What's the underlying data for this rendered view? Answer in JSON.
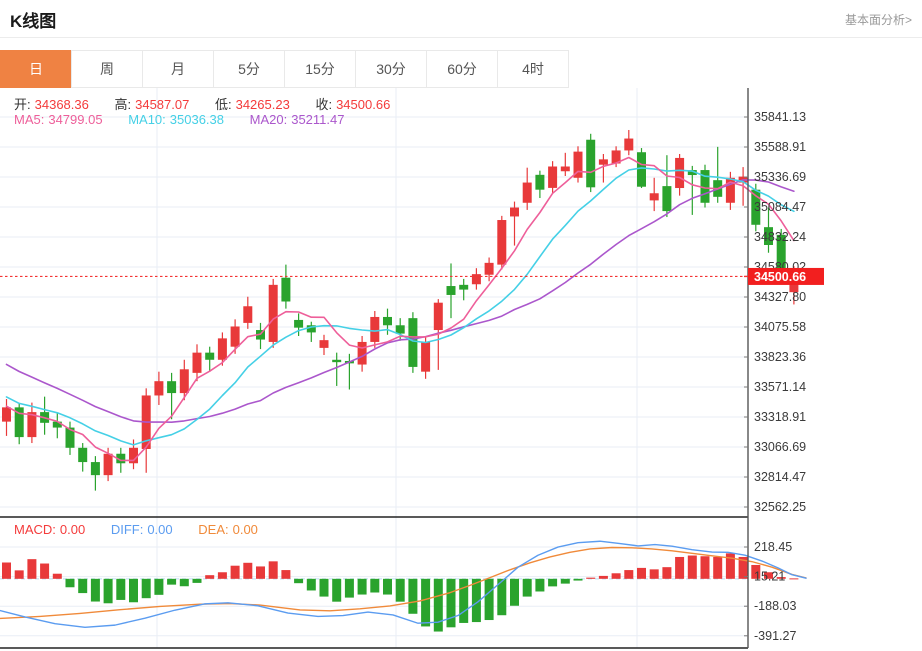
{
  "page": {
    "title": "K线图",
    "link_label": "基本面分析>"
  },
  "tabs": {
    "items": [
      "日",
      "周",
      "月",
      "5分",
      "15分",
      "30分",
      "60分",
      "4时"
    ],
    "active_index": 0
  },
  "ohlc": {
    "open_label": "开:",
    "open": "34368.36",
    "high_label": "高:",
    "high": "34587.07",
    "low_label": "低:",
    "low": "34265.23",
    "close_label": "收:",
    "close": "34500.66"
  },
  "ma_header": {
    "ma5_label": "MA5:",
    "ma5": "34799.05",
    "ma10_label": "MA10:",
    "ma10": "35036.38",
    "ma20_label": "MA20:",
    "ma20": "35211.47"
  },
  "macd_header": {
    "macd_label": "MACD:",
    "macd": "0.00",
    "diff_label": "DIFF:",
    "diff": "0.00",
    "dea_label": "DEA:",
    "dea": "0.00"
  },
  "colors": {
    "up": "#e8393a",
    "down": "#2aa32d",
    "ma5": "#ee5f9a",
    "ma10": "#45d0e6",
    "ma20": "#ab57cc",
    "diff": "#5b9cf0",
    "dea": "#f08a3a",
    "price_line": "#f43333",
    "price_tag_bg": "#f21f1f",
    "grid": "#e9eef5",
    "axis": "#555555",
    "tick": "#9bb3c9",
    "tab_active_bg": "#ef8243",
    "label_text": "#333333",
    "value_red": "#f43b3b",
    "zero_line": "#b8ddf2"
  },
  "chart_data": {
    "type": "candlestick+macd",
    "title": "K线图 日K",
    "legend": [
      "MA5",
      "MA10",
      "MA20",
      "MACD",
      "DIFF",
      "DEA"
    ],
    "grid": true,
    "main": {
      "y_axis_labels": [
        {
          "value": 35841.13,
          "text": "35841.13"
        },
        {
          "value": 35588.91,
          "text": "35588.91"
        },
        {
          "value": 35336.69,
          "text": "35336.69"
        },
        {
          "value": 35084.47,
          "text": "35084.47"
        },
        {
          "value": 34832.24,
          "text": "34832.24"
        },
        {
          "value": 34580.02,
          "text": "34580.02"
        },
        {
          "value": 34327.8,
          "text": "34327.80"
        },
        {
          "value": 34075.58,
          "text": "34075.58"
        },
        {
          "value": 33823.36,
          "text": "33823.36"
        },
        {
          "value": 33571.14,
          "text": "33571.14"
        },
        {
          "value": 33318.91,
          "text": "33318.91"
        },
        {
          "value": 33066.69,
          "text": "33066.69"
        },
        {
          "value": 32814.47,
          "text": "32814.47"
        },
        {
          "value": 32562.25,
          "text": "32562.25"
        }
      ],
      "current_price": {
        "value": 34500.66,
        "text": "34500.66"
      },
      "ma_seed_closes": [
        34350,
        34300,
        34250,
        34150,
        34050,
        33950,
        33900,
        33850,
        33800,
        33750,
        33700,
        33600,
        33550,
        33500,
        33480,
        33450,
        33420,
        33400,
        33380
      ],
      "candles_ohlc_note": "each candle = [open, close, low, high]; red when close>=open",
      "candles": [
        [
          33280,
          33400,
          33160,
          33470
        ],
        [
          33400,
          33150,
          33090,
          33430
        ],
        [
          33150,
          33360,
          33100,
          33440
        ],
        [
          33360,
          33270,
          33170,
          33490
        ],
        [
          33280,
          33230,
          33140,
          33350
        ],
        [
          33230,
          33060,
          33000,
          33280
        ],
        [
          33060,
          32940,
          32860,
          33100
        ],
        [
          32940,
          32830,
          32700,
          32990
        ],
        [
          32830,
          33010,
          32780,
          33060
        ],
        [
          33010,
          32930,
          32850,
          33060
        ],
        [
          32930,
          33060,
          32880,
          33130
        ],
        [
          33050,
          33500,
          32850,
          33560
        ],
        [
          33500,
          33620,
          33420,
          33700
        ],
        [
          33620,
          33520,
          33300,
          33690
        ],
        [
          33520,
          33720,
          33460,
          33800
        ],
        [
          33690,
          33860,
          33620,
          33930
        ],
        [
          33860,
          33800,
          33700,
          33910
        ],
        [
          33800,
          33980,
          33750,
          34030
        ],
        [
          33910,
          34080,
          33850,
          34140
        ],
        [
          34110,
          34250,
          34060,
          34330
        ],
        [
          34050,
          33970,
          33890,
          34110
        ],
        [
          33950,
          34430,
          33900,
          34480
        ],
        [
          34490,
          34290,
          34230,
          34600
        ],
        [
          34135,
          34070,
          34000,
          34190
        ],
        [
          34090,
          34030,
          33950,
          34120
        ],
        [
          33900,
          33965,
          33840,
          34010
        ],
        [
          33800,
          33780,
          33580,
          33860
        ],
        [
          33790,
          33770,
          33550,
          33850
        ],
        [
          33760,
          33950,
          33700,
          34000
        ],
        [
          33950,
          34160,
          33900,
          34210
        ],
        [
          34160,
          34090,
          34010,
          34230
        ],
        [
          34090,
          34020,
          33960,
          34150
        ],
        [
          34150,
          33740,
          33690,
          34200
        ],
        [
          33700,
          33950,
          33640,
          33990
        ],
        [
          34050,
          34280,
          33715,
          34310
        ],
        [
          34420,
          34345,
          34150,
          34610
        ],
        [
          34430,
          34390,
          34300,
          34480
        ],
        [
          34435,
          34520,
          34390,
          34570
        ],
        [
          34515,
          34615,
          34460,
          34660
        ],
        [
          34600,
          34975,
          34560,
          35010
        ],
        [
          35005,
          35080,
          34760,
          35130
        ],
        [
          35120,
          35290,
          35060,
          35415
        ],
        [
          35355,
          35230,
          35160,
          35390
        ],
        [
          35245,
          35425,
          35200,
          35470
        ],
        [
          35385,
          35425,
          35345,
          35540
        ],
        [
          35330,
          35550,
          35290,
          35595
        ],
        [
          35650,
          35250,
          35210,
          35700
        ],
        [
          35440,
          35485,
          35290,
          35530
        ],
        [
          35450,
          35560,
          35420,
          35595
        ],
        [
          35560,
          35660,
          35520,
          35732
        ],
        [
          35545,
          35255,
          35244,
          35580
        ],
        [
          35140,
          35200,
          35050,
          35330
        ],
        [
          35260,
          35050,
          35000,
          35520
        ],
        [
          35244,
          35497,
          35180,
          35530
        ],
        [
          35395,
          35353,
          35018,
          35430
        ],
        [
          35395,
          35120,
          35080,
          35440
        ],
        [
          35310,
          35170,
          35120,
          35590
        ],
        [
          35120,
          35330,
          35060,
          35380
        ],
        [
          35290,
          35340,
          35095,
          35420
        ],
        [
          35230,
          34935,
          34880,
          35280
        ],
        [
          34915,
          34765,
          34700,
          35080
        ],
        [
          34850,
          34470,
          34440,
          34900
        ],
        [
          34368.36,
          34500.66,
          34265.23,
          34587.07
        ]
      ]
    },
    "macd": {
      "y_axis_labels": [
        {
          "value": 218.45,
          "text": "218.45"
        },
        {
          "value": 15.21,
          "text": "15.21"
        },
        {
          "value": -188.03,
          "text": "-188.03"
        },
        {
          "value": -391.27,
          "text": "-391.27"
        }
      ],
      "bars": [
        112,
        58,
        135,
        105,
        35,
        -58,
        -98,
        -156,
        -168,
        -145,
        -161,
        -133,
        -110,
        -40,
        -51,
        -28,
        25,
        45,
        90,
        110,
        85,
        120,
        60,
        -30,
        -80,
        -122,
        -157,
        -129,
        -108,
        -94,
        -108,
        -157,
        -240,
        -327,
        -362,
        -333,
        -303,
        -297,
        -283,
        -250,
        -185,
        -122,
        -87,
        -52,
        -33,
        -12,
        8,
        20,
        38,
        60,
        75,
        65,
        80,
        150,
        160,
        155,
        150,
        175,
        150,
        95,
        45,
        12,
        3
      ],
      "diff_points": [
        [
          0,
          -218
        ],
        [
          25,
          -262
        ],
        [
          55,
          -308
        ],
        [
          85,
          -333
        ],
        [
          115,
          -318
        ],
        [
          145,
          -270
        ],
        [
          175,
          -215
        ],
        [
          205,
          -172
        ],
        [
          228,
          -165
        ],
        [
          258,
          -185
        ],
        [
          288,
          -235
        ],
        [
          318,
          -258
        ],
        [
          343,
          -252
        ],
        [
          368,
          -228
        ],
        [
          393,
          -248
        ],
        [
          418,
          -305
        ],
        [
          438,
          -298
        ],
        [
          458,
          -252
        ],
        [
          478,
          -158
        ],
        [
          498,
          -40
        ],
        [
          518,
          80
        ],
        [
          538,
          162
        ],
        [
          558,
          218
        ],
        [
          578,
          248
        ],
        [
          600,
          258
        ],
        [
          620,
          242
        ],
        [
          638,
          226
        ],
        [
          655,
          235
        ],
        [
          672,
          224
        ],
        [
          692,
          200
        ],
        [
          712,
          184
        ],
        [
          728,
          182
        ],
        [
          745,
          162
        ],
        [
          762,
          122
        ],
        [
          778,
          75
        ],
        [
          792,
          28
        ],
        [
          806,
          4
        ]
      ],
      "dea_points": [
        [
          0,
          -272
        ],
        [
          40,
          -258
        ],
        [
          80,
          -238
        ],
        [
          120,
          -212
        ],
        [
          160,
          -190
        ],
        [
          200,
          -174
        ],
        [
          230,
          -170
        ],
        [
          260,
          -180
        ],
        [
          300,
          -214
        ],
        [
          330,
          -220
        ],
        [
          360,
          -206
        ],
        [
          390,
          -186
        ],
        [
          420,
          -152
        ],
        [
          450,
          -95
        ],
        [
          470,
          -45
        ],
        [
          490,
          8
        ],
        [
          510,
          62
        ],
        [
          530,
          110
        ],
        [
          550,
          150
        ],
        [
          570,
          182
        ],
        [
          590,
          205
        ],
        [
          612,
          215
        ],
        [
          632,
          213
        ],
        [
          652,
          205
        ],
        [
          672,
          192
        ],
        [
          692,
          175
        ],
        [
          712,
          158
        ],
        [
          732,
          142
        ],
        [
          752,
          118
        ],
        [
          772,
          80
        ],
        [
          792,
          30
        ],
        [
          806,
          6
        ]
      ]
    },
    "vertical_gridlines_x": [
      157,
      396,
      637
    ]
  }
}
